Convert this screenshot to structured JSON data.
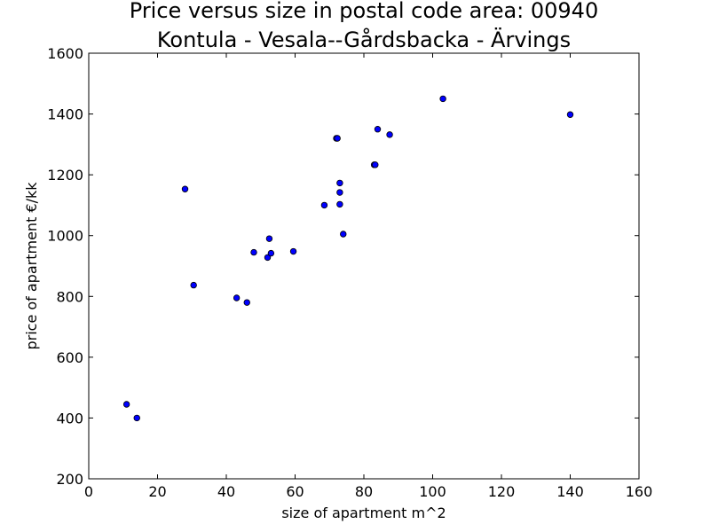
{
  "chart_data": {
    "type": "scatter",
    "title": "Price versus size in postal code area: 00940",
    "subtitle": "Kontula - Vesala--Gårdsbacka - Ärvings",
    "xlabel": "size of apartment m^2",
    "ylabel": "price of apartment €/kk",
    "xlim": [
      0,
      160
    ],
    "ylim": [
      200,
      1600
    ],
    "xticks": [
      0,
      20,
      40,
      60,
      80,
      100,
      120,
      140,
      160
    ],
    "yticks": [
      200,
      400,
      600,
      800,
      1000,
      1200,
      1400,
      1600
    ],
    "grid": false,
    "marker_color": "#0000ff",
    "points": [
      {
        "x": 11,
        "y": 445
      },
      {
        "x": 14,
        "y": 400
      },
      {
        "x": 28,
        "y": 1153
      },
      {
        "x": 30.5,
        "y": 837
      },
      {
        "x": 43,
        "y": 795
      },
      {
        "x": 46,
        "y": 780
      },
      {
        "x": 48,
        "y": 945
      },
      {
        "x": 52,
        "y": 928
      },
      {
        "x": 52.5,
        "y": 990
      },
      {
        "x": 53,
        "y": 942
      },
      {
        "x": 59.5,
        "y": 948
      },
      {
        "x": 68.5,
        "y": 1100
      },
      {
        "x": 72,
        "y": 1320
      },
      {
        "x": 72.3,
        "y": 1320
      },
      {
        "x": 73,
        "y": 1173
      },
      {
        "x": 73,
        "y": 1142
      },
      {
        "x": 73,
        "y": 1103
      },
      {
        "x": 74,
        "y": 1005
      },
      {
        "x": 83,
        "y": 1233
      },
      {
        "x": 83.3,
        "y": 1233
      },
      {
        "x": 84,
        "y": 1350
      },
      {
        "x": 87.5,
        "y": 1332
      },
      {
        "x": 103,
        "y": 1450
      },
      {
        "x": 140,
        "y": 1398
      }
    ]
  }
}
